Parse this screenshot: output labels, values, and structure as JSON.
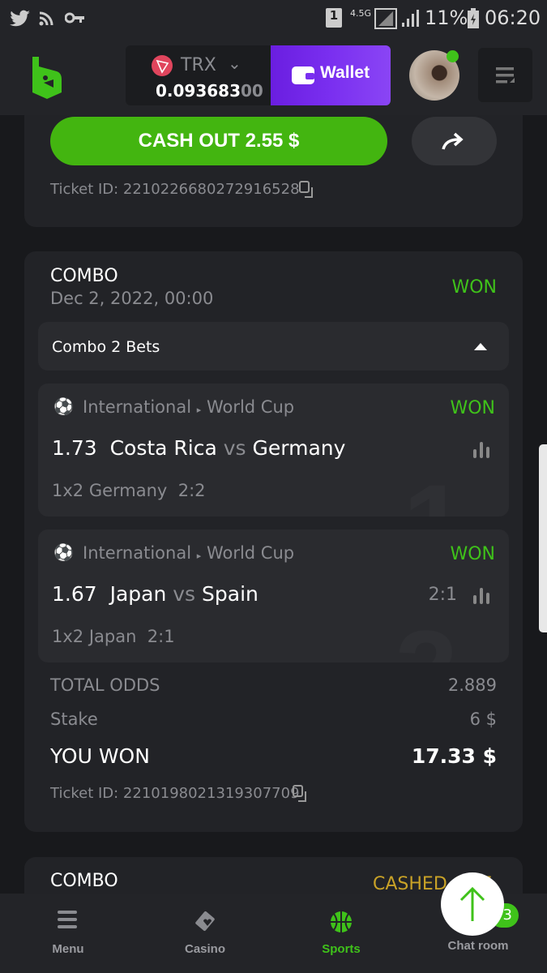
{
  "status_bar": {
    "sim": "1",
    "network": "4.5G",
    "battery": "11%",
    "time": "06:20",
    "icons": [
      "twitter-icon",
      "rss-icon",
      "key-icon"
    ]
  },
  "header": {
    "currency": "TRX",
    "balance_main": "0.093683",
    "balance_dim": "00",
    "wallet_label": "Wallet",
    "accent": "#7a2ff0"
  },
  "prev_ticket": {
    "cashout_label": "CASH OUT 2.55 $",
    "ticket_id": "Ticket ID: 2210226680272916528"
  },
  "combo": {
    "type": "COMBO",
    "date": "Dec 2, 2022, 00:00",
    "status": "WON",
    "toggle_label": "Combo 2 Bets",
    "bets": [
      {
        "league": "International",
        "tournament": "World Cup",
        "status": "WON",
        "odds": "1.73",
        "home": "Costa Rica",
        "vs": "vs",
        "away": "Germany",
        "market": "1x2 Germany",
        "score": "2:2",
        "score_right": "",
        "index": "1"
      },
      {
        "league": "International",
        "tournament": "World Cup",
        "status": "WON",
        "odds": "1.67",
        "home": "Japan",
        "vs": "vs",
        "away": "Spain",
        "market": "1x2 Japan",
        "score": "2:1",
        "score_right": "2:1",
        "index": "2"
      }
    ],
    "total_odds_label": "TOTAL ODDS",
    "total_odds": "2.889",
    "stake_label": "Stake",
    "stake": "6 $",
    "won_label": "YOU WON",
    "won": "17.33 $",
    "ticket_id": "Ticket ID: 2210198021319307709"
  },
  "next_combo": {
    "type": "COMBO",
    "status": "CASHED OUT"
  },
  "nav": {
    "items": [
      {
        "label": "Menu"
      },
      {
        "label": "Casino"
      },
      {
        "label": "Sports",
        "active": true
      },
      {
        "label": "Chat room",
        "badge": "3"
      }
    ]
  }
}
